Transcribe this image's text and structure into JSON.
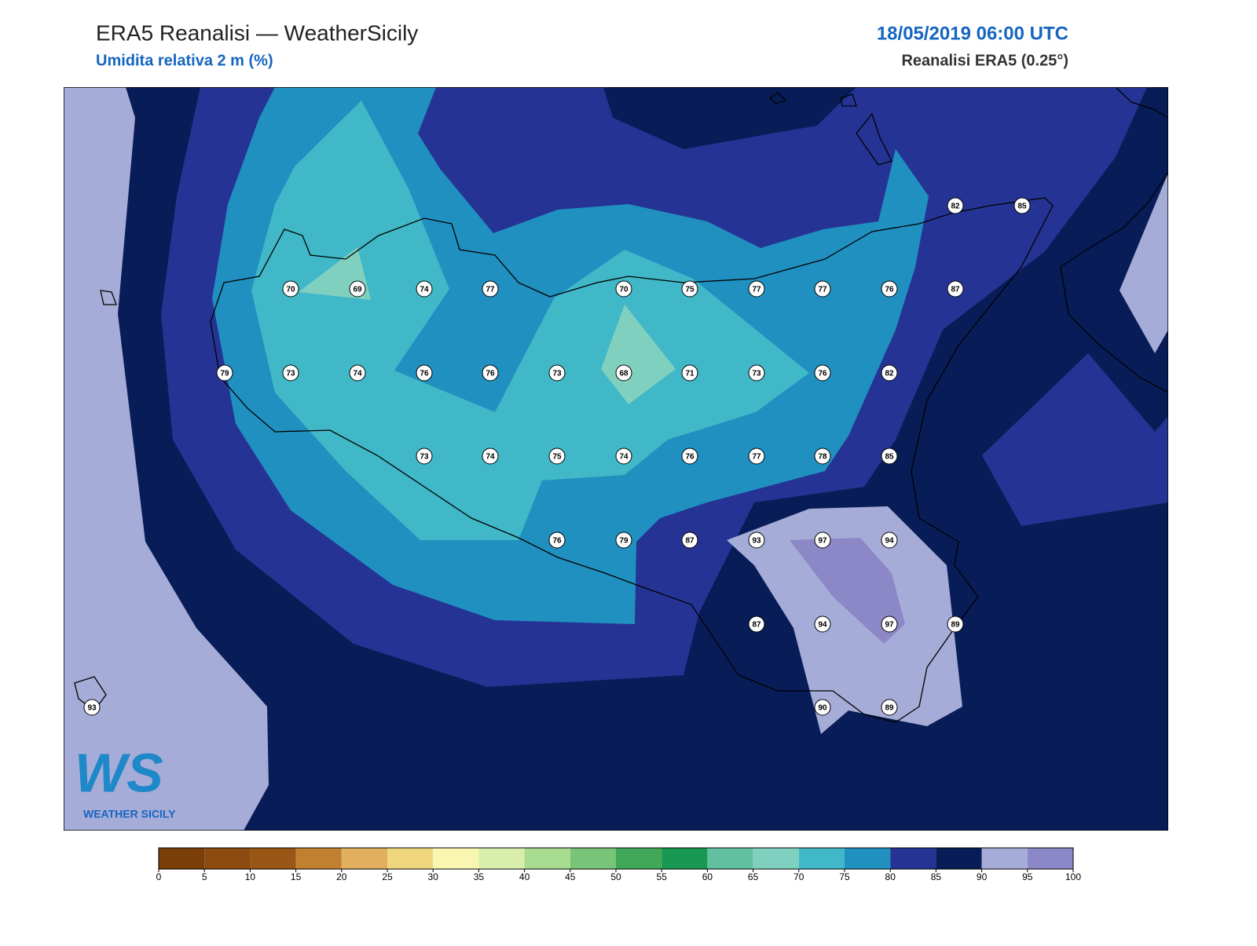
{
  "header": {
    "title": "ERA5 Reanalisi — WeatherSicily",
    "subtitle": "Umidita relativa 2 m (%)",
    "datetime": "18/05/2019 06:00 UTC",
    "source": "Reanalisi ERA5 (0.25°)"
  },
  "map": {
    "stations": [
      82,
      85,
      70,
      69,
      74,
      77,
      70,
      75,
      77,
      77,
      76,
      87,
      79,
      73,
      74,
      76,
      76,
      73,
      68,
      71,
      73,
      76,
      82,
      73,
      74,
      75,
      74,
      76,
      77,
      78,
      85,
      76,
      79,
      87,
      93,
      97,
      94,
      87,
      94,
      97,
      89,
      93,
      90,
      89
    ]
  },
  "colorbar": {
    "ticks": [
      0,
      5,
      10,
      15,
      20,
      25,
      30,
      35,
      40,
      45,
      50,
      55,
      60,
      65,
      70,
      75,
      80,
      85,
      90,
      95,
      100
    ],
    "colors": [
      "#7a3f08",
      "#8b4a0e",
      "#9a5614",
      "#c0802f",
      "#e0b05e",
      "#f0d67e",
      "#f8f6b0",
      "#d8eeaa",
      "#a8dc90",
      "#78c478",
      "#40a858",
      "#189850",
      "#60c0a0",
      "#80d0c0",
      "#40b8c8",
      "#2090c0",
      "#253494",
      "#081d58",
      "#a6acd8",
      "#8c88c8"
    ]
  },
  "logo": {
    "mark": "WS",
    "name": "WEATHER SICILY"
  }
}
